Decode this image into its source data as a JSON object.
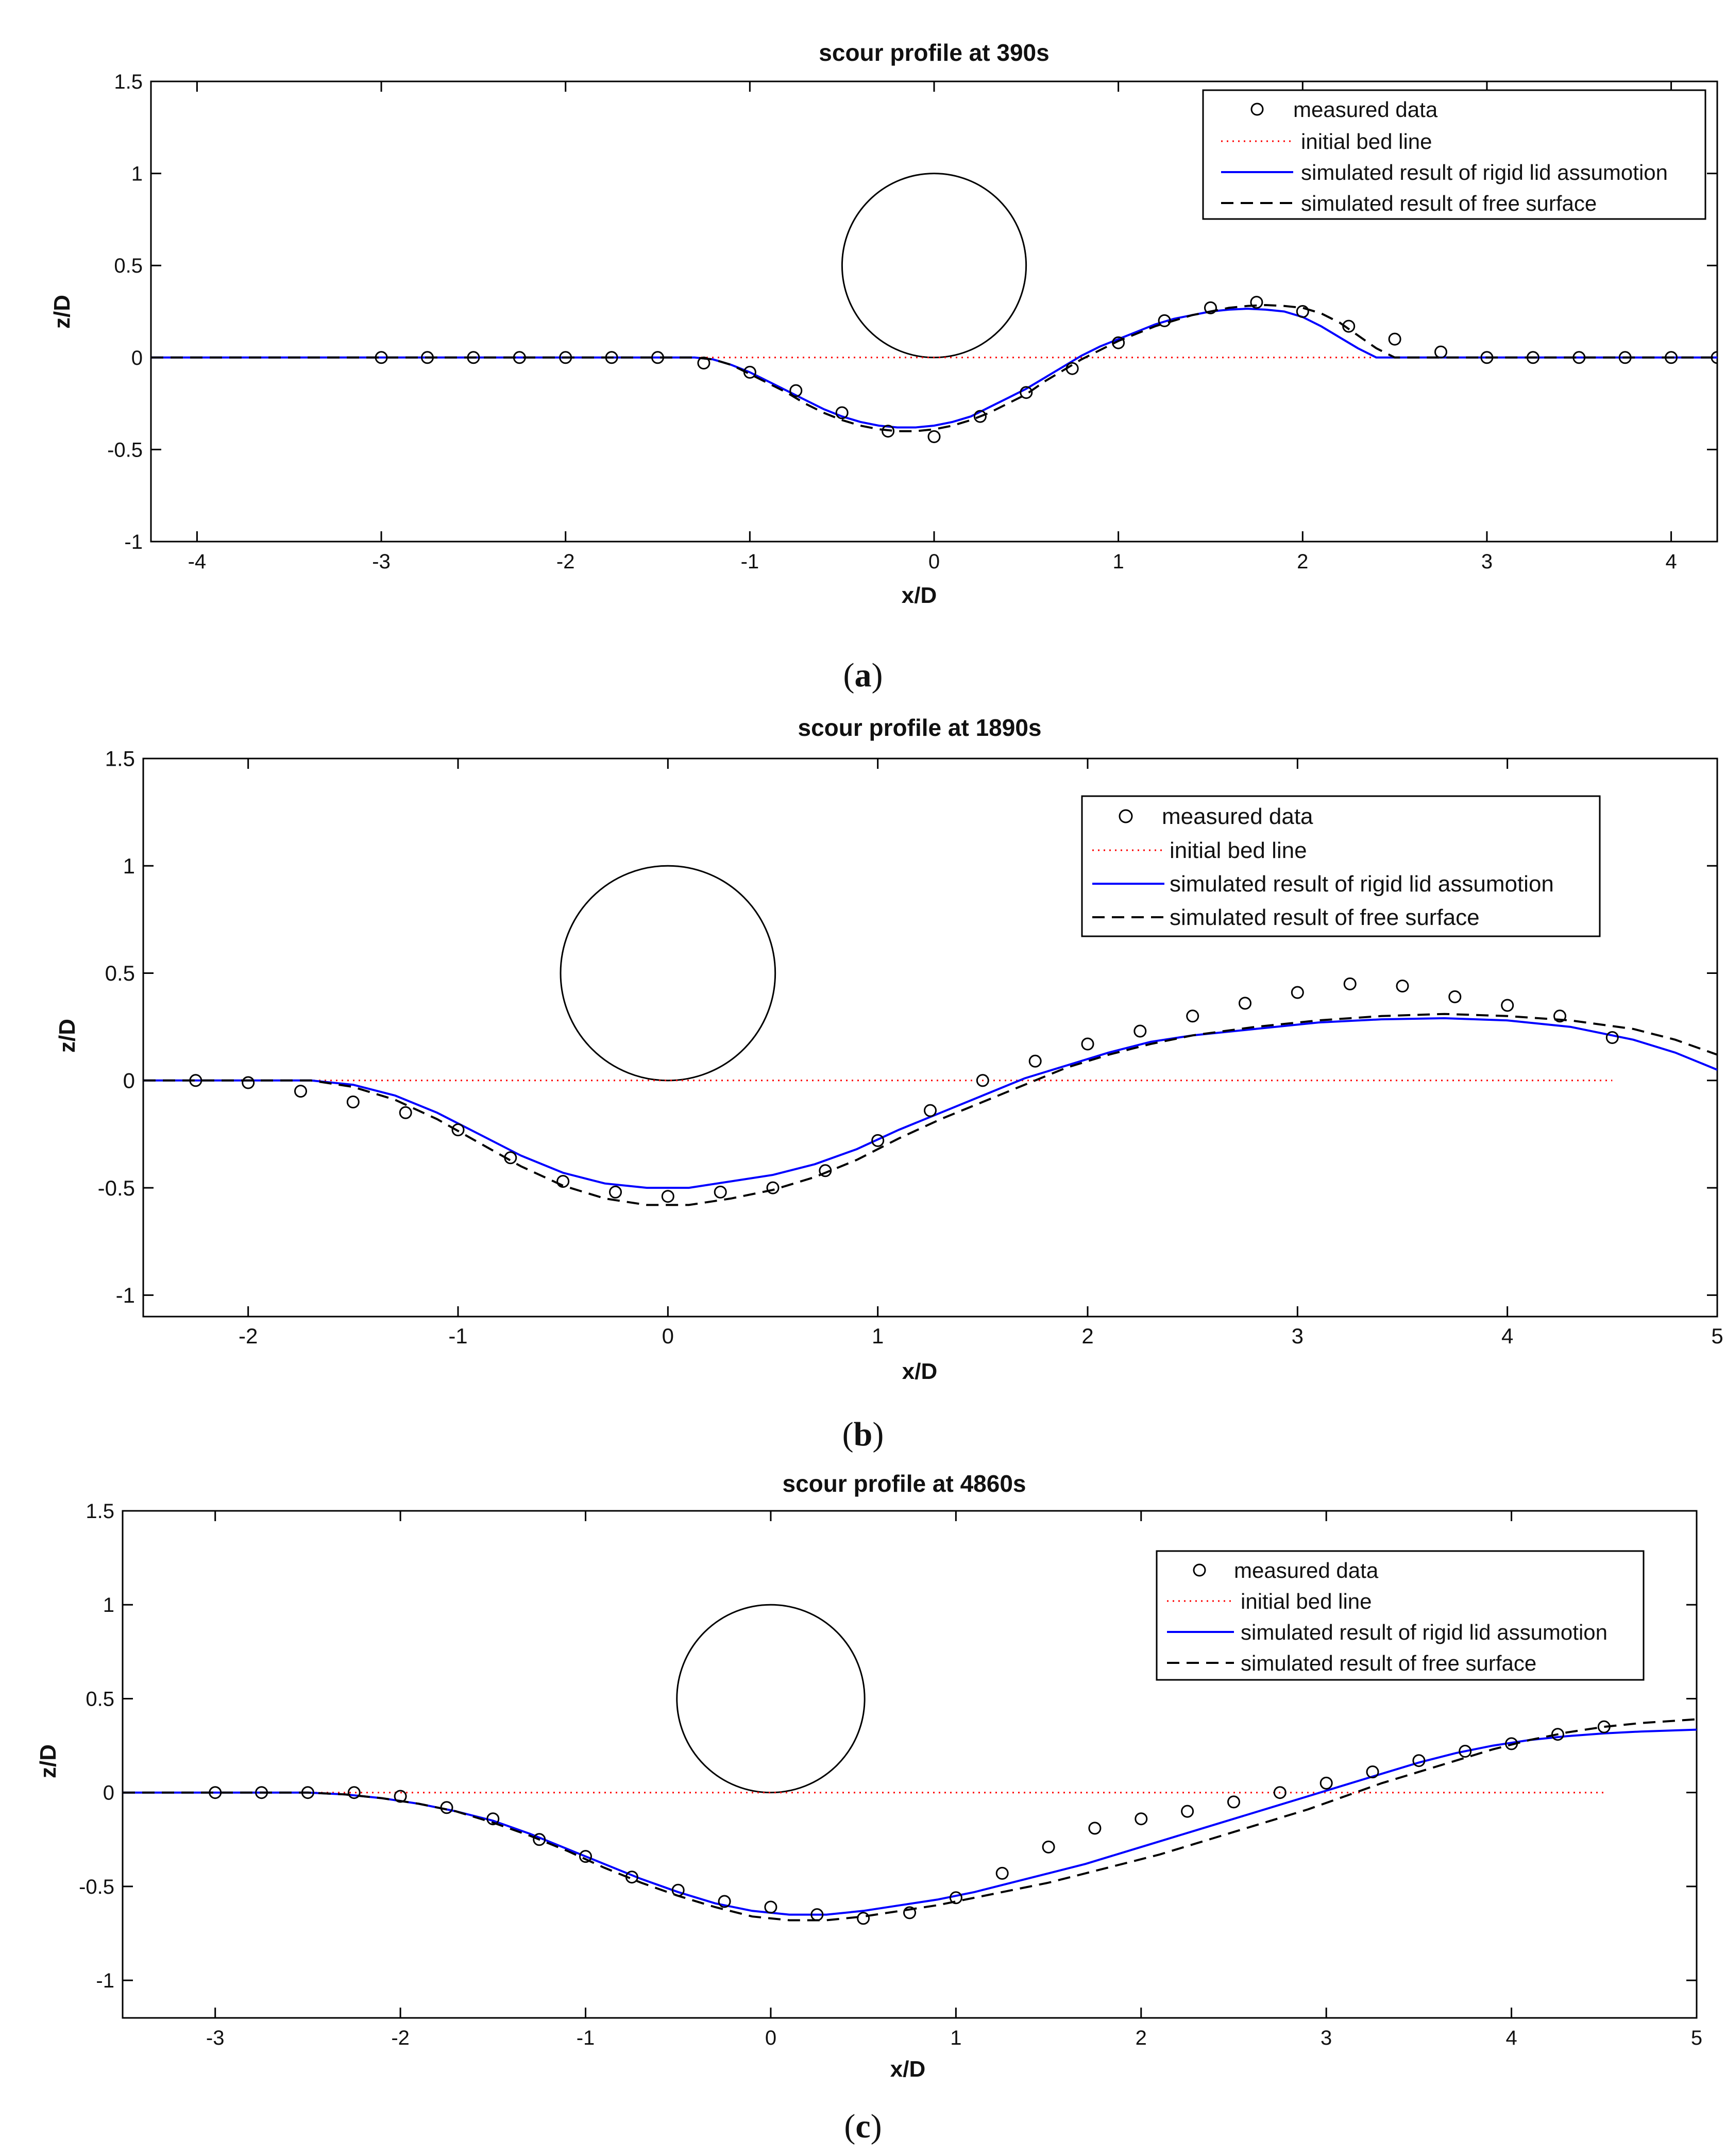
{
  "figure": {
    "panels": [
      {
        "caption_open": "(",
        "caption_letter": "a",
        "caption_close": ")"
      },
      {
        "caption_open": "(",
        "caption_letter": "b",
        "caption_close": ")"
      },
      {
        "caption_open": "(",
        "caption_letter": "c",
        "caption_close": ")"
      }
    ]
  },
  "chart_data": [
    {
      "type": "line",
      "title": "scour profile at 390s",
      "xlabel": "x/D",
      "ylabel": "z/D",
      "xlim": [
        -4.25,
        4.25
      ],
      "ylim": [
        -1,
        1.5
      ],
      "xticks": [
        -4,
        -3,
        -2,
        -1,
        0,
        1,
        2,
        3,
        4
      ],
      "yticks": [
        -1,
        -0.5,
        0,
        0.5,
        1,
        1.5
      ],
      "xtick_labels": [
        "-4",
        "-3",
        "-2",
        "-1",
        "0",
        "1",
        "2",
        "3",
        "4"
      ],
      "ytick_labels": [
        "-1",
        "-0.5",
        "0",
        "0.5",
        "1",
        "1.5"
      ],
      "legend": {
        "placement": "top-right",
        "entries": [
          "measured data",
          "initial bed line",
          "simulated result of rigid lid assumotion",
          "simulated result of free surface"
        ]
      },
      "colors": {
        "measured": "#000000",
        "initial": "#ff0000",
        "rigid": "#0000ff",
        "free": "#000000"
      },
      "pipe": {
        "center_x": 0,
        "center_z": 0.5,
        "radius": 0.5
      },
      "initial_bed": {
        "x": [
          -4.25,
          4.25
        ],
        "z": [
          0,
          0
        ]
      },
      "measured": {
        "x": [
          -3,
          -2.75,
          -2.5,
          -2.25,
          -2,
          -1.75,
          -1.5,
          -1.25,
          -1,
          -0.75,
          -0.5,
          -0.25,
          0,
          0.25,
          0.5,
          0.75,
          1,
          1.25,
          1.5,
          1.75,
          2,
          2.25,
          2.5,
          2.75,
          3,
          3.25,
          3.5,
          3.75,
          4,
          4.25
        ],
        "z": [
          0,
          0,
          0,
          0,
          0,
          0,
          0,
          -0.03,
          -0.08,
          -0.18,
          -0.3,
          -0.4,
          -0.43,
          -0.32,
          -0.19,
          -0.06,
          0.08,
          0.2,
          0.27,
          0.3,
          0.25,
          0.17,
          0.1,
          0.03,
          0,
          0,
          0,
          0,
          0,
          0
        ]
      },
      "series": [
        {
          "name": "simulated result of rigid lid assumotion",
          "x": [
            -4.25,
            -1.3,
            -1.2,
            -1.1,
            -1.0,
            -0.9,
            -0.8,
            -0.7,
            -0.6,
            -0.5,
            -0.4,
            -0.3,
            -0.2,
            -0.1,
            0.0,
            0.1,
            0.2,
            0.3,
            0.4,
            0.5,
            0.6,
            0.7,
            0.8,
            0.9,
            1.0,
            1.1,
            1.2,
            1.3,
            1.4,
            1.5,
            1.6,
            1.7,
            1.8,
            1.9,
            2.0,
            2.1,
            2.2,
            2.3,
            2.4,
            2.5,
            4.25
          ],
          "z": [
            0,
            0,
            -0.01,
            -0.04,
            -0.08,
            -0.13,
            -0.18,
            -0.23,
            -0.28,
            -0.32,
            -0.35,
            -0.37,
            -0.38,
            -0.38,
            -0.37,
            -0.35,
            -0.32,
            -0.27,
            -0.22,
            -0.17,
            -0.11,
            -0.05,
            0.01,
            0.06,
            0.1,
            0.14,
            0.18,
            0.21,
            0.23,
            0.25,
            0.26,
            0.265,
            0.26,
            0.25,
            0.22,
            0.17,
            0.11,
            0.05,
            0,
            0,
            0
          ]
        },
        {
          "name": "simulated result of free surface",
          "x": [
            -4.25,
            -1.3,
            -1.2,
            -1.1,
            -1.0,
            -0.9,
            -0.8,
            -0.7,
            -0.6,
            -0.5,
            -0.4,
            -0.3,
            -0.2,
            -0.1,
            0.0,
            0.1,
            0.2,
            0.3,
            0.4,
            0.5,
            0.6,
            0.7,
            0.8,
            0.9,
            1.0,
            1.1,
            1.2,
            1.3,
            1.4,
            1.5,
            1.6,
            1.7,
            1.8,
            1.9,
            2.0,
            2.1,
            2.2,
            2.3,
            2.4,
            2.5,
            4.25
          ],
          "z": [
            0,
            0,
            -0.01,
            -0.04,
            -0.09,
            -0.14,
            -0.19,
            -0.25,
            -0.3,
            -0.34,
            -0.37,
            -0.39,
            -0.4,
            -0.4,
            -0.39,
            -0.37,
            -0.34,
            -0.3,
            -0.25,
            -0.2,
            -0.13,
            -0.07,
            -0.01,
            0.04,
            0.09,
            0.13,
            0.17,
            0.2,
            0.23,
            0.25,
            0.27,
            0.28,
            0.285,
            0.28,
            0.27,
            0.24,
            0.19,
            0.12,
            0.05,
            0,
            0
          ]
        }
      ]
    },
    {
      "type": "line",
      "title": "scour profile at 1890s",
      "xlabel": "x/D",
      "ylabel": "z/D",
      "xlim": [
        -2.5,
        5
      ],
      "ylim": [
        -1.1,
        1.5
      ],
      "xticks": [
        -2,
        -1,
        0,
        1,
        2,
        3,
        4,
        5
      ],
      "yticks": [
        -1,
        -0.5,
        0,
        0.5,
        1,
        1.5
      ],
      "xtick_labels": [
        "-2",
        "-1",
        "0",
        "1",
        "2",
        "3",
        "4",
        "5"
      ],
      "ytick_labels": [
        "-1",
        "-0.5",
        "0",
        "0.5",
        "1",
        "1.5"
      ],
      "legend": {
        "placement": "top-right",
        "entries": [
          "measured data",
          "initial bed line",
          "simulated result of rigid lid assumotion",
          "simulated result of free surface"
        ]
      },
      "colors": {
        "measured": "#000000",
        "initial": "#ff0000",
        "rigid": "#0000ff",
        "free": "#000000"
      },
      "pipe": {
        "center_x": 0,
        "center_z": 0.5,
        "radius": 0.5
      },
      "initial_bed": {
        "x": [
          -2.5,
          4.5
        ],
        "z": [
          0,
          0
        ]
      },
      "measured": {
        "x": [
          -2.25,
          -2,
          -1.75,
          -1.5,
          -1.25,
          -1,
          -0.75,
          -0.5,
          -0.25,
          0,
          0.25,
          0.5,
          0.75,
          1,
          1.25,
          1.5,
          1.75,
          2,
          2.25,
          2.5,
          2.75,
          3,
          3.25,
          3.5,
          3.75,
          4,
          4.25,
          4.5
        ],
        "z": [
          0,
          -0.01,
          -0.05,
          -0.1,
          -0.15,
          -0.23,
          -0.36,
          -0.47,
          -0.52,
          -0.54,
          -0.52,
          -0.5,
          -0.42,
          -0.28,
          -0.14,
          0,
          0.09,
          0.17,
          0.23,
          0.3,
          0.36,
          0.41,
          0.45,
          0.44,
          0.39,
          0.35,
          0.3,
          0.2
        ]
      },
      "series": [
        {
          "name": "simulated result of rigid lid assumotion",
          "x": [
            -2.5,
            -1.7,
            -1.5,
            -1.3,
            -1.1,
            -0.9,
            -0.7,
            -0.5,
            -0.3,
            -0.1,
            0.1,
            0.3,
            0.5,
            0.7,
            0.9,
            1.1,
            1.3,
            1.5,
            1.7,
            1.9,
            2.1,
            2.3,
            2.5,
            2.8,
            3.1,
            3.4,
            3.7,
            4.0,
            4.3,
            4.6,
            4.8,
            5.0
          ],
          "z": [
            0,
            0,
            -0.02,
            -0.07,
            -0.15,
            -0.25,
            -0.35,
            -0.43,
            -0.48,
            -0.5,
            -0.5,
            -0.47,
            -0.44,
            -0.39,
            -0.32,
            -0.23,
            -0.15,
            -0.07,
            0.01,
            0.07,
            0.13,
            0.18,
            0.21,
            0.24,
            0.27,
            0.285,
            0.29,
            0.28,
            0.25,
            0.19,
            0.13,
            0.05
          ]
        },
        {
          "name": "simulated result of free surface",
          "x": [
            -2.5,
            -1.7,
            -1.5,
            -1.3,
            -1.1,
            -0.9,
            -0.7,
            -0.5,
            -0.3,
            -0.1,
            0.1,
            0.3,
            0.5,
            0.7,
            0.9,
            1.1,
            1.3,
            1.5,
            1.7,
            1.9,
            2.1,
            2.3,
            2.5,
            2.8,
            3.1,
            3.4,
            3.7,
            4.0,
            4.3,
            4.6,
            4.8,
            5.0
          ],
          "z": [
            0,
            0,
            -0.03,
            -0.09,
            -0.18,
            -0.29,
            -0.4,
            -0.49,
            -0.55,
            -0.58,
            -0.58,
            -0.55,
            -0.51,
            -0.45,
            -0.37,
            -0.27,
            -0.18,
            -0.1,
            -0.02,
            0.06,
            0.12,
            0.17,
            0.21,
            0.25,
            0.28,
            0.3,
            0.31,
            0.3,
            0.28,
            0.24,
            0.19,
            0.12
          ]
        }
      ]
    },
    {
      "type": "line",
      "title": "scour profile at 4860s",
      "xlabel": "x/D",
      "ylabel": "z/D",
      "xlim": [
        -3.5,
        5
      ],
      "ylim": [
        -1.2,
        1.5
      ],
      "xticks": [
        -3,
        -2,
        -1,
        0,
        1,
        2,
        3,
        4,
        5
      ],
      "yticks": [
        -1,
        -0.5,
        0,
        0.5,
        1,
        1.5
      ],
      "xtick_labels": [
        "-3",
        "-2",
        "-1",
        "0",
        "1",
        "2",
        "3",
        "4",
        "5"
      ],
      "ytick_labels": [
        "-1",
        "-0.5",
        "0",
        "0.5",
        "1",
        "1.5"
      ],
      "legend": {
        "placement": "top-right",
        "entries": [
          "measured data",
          "initial bed line",
          "simulated result of rigid lid assumotion",
          "simulated result of free surface"
        ]
      },
      "colors": {
        "measured": "#000000",
        "initial": "#ff0000",
        "rigid": "#0000ff",
        "free": "#000000"
      },
      "pipe": {
        "center_x": 0,
        "center_z": 0.5,
        "radius": 0.5
      },
      "initial_bed": {
        "x": [
          -3.5,
          4.5
        ],
        "z": [
          0,
          0
        ]
      },
      "measured": {
        "x": [
          -3,
          -2.75,
          -2.5,
          -2.25,
          -2,
          -1.75,
          -1.5,
          -1.25,
          -1,
          -0.75,
          -0.5,
          -0.25,
          0,
          0.25,
          0.5,
          0.75,
          1,
          1.25,
          1.5,
          1.75,
          2,
          2.25,
          2.5,
          2.75,
          3,
          3.25,
          3.5,
          3.75,
          4,
          4.25,
          4.5
        ],
        "z": [
          0,
          0,
          0,
          0,
          -0.02,
          -0.08,
          -0.14,
          -0.25,
          -0.34,
          -0.45,
          -0.52,
          -0.58,
          -0.61,
          -0.65,
          -0.67,
          -0.64,
          -0.56,
          -0.43,
          -0.29,
          -0.19,
          -0.14,
          -0.1,
          -0.05,
          0,
          0.05,
          0.11,
          0.17,
          0.22,
          0.26,
          0.31,
          0.35
        ]
      },
      "series": [
        {
          "name": "simulated result of rigid lid assumotion",
          "x": [
            -3.5,
            -2.5,
            -2.3,
            -2.1,
            -1.9,
            -1.7,
            -1.5,
            -1.3,
            -1.1,
            -0.9,
            -0.7,
            -0.5,
            -0.3,
            -0.1,
            0.1,
            0.3,
            0.5,
            0.7,
            0.9,
            1.1,
            1.3,
            1.5,
            1.7,
            1.9,
            2.1,
            2.3,
            2.5,
            2.7,
            2.9,
            3.1,
            3.3,
            3.5,
            3.7,
            3.9,
            4.1,
            4.3,
            4.5,
            4.7,
            5.0
          ],
          "z": [
            0,
            0,
            -0.01,
            -0.03,
            -0.06,
            -0.1,
            -0.15,
            -0.22,
            -0.3,
            -0.38,
            -0.46,
            -0.53,
            -0.59,
            -0.63,
            -0.65,
            -0.65,
            -0.63,
            -0.6,
            -0.57,
            -0.53,
            -0.48,
            -0.43,
            -0.38,
            -0.32,
            -0.26,
            -0.2,
            -0.14,
            -0.08,
            -0.02,
            0.04,
            0.1,
            0.16,
            0.21,
            0.25,
            0.28,
            0.3,
            0.315,
            0.325,
            0.335
          ]
        },
        {
          "name": "simulated result of free surface",
          "x": [
            -3.5,
            -2.5,
            -2.3,
            -2.1,
            -1.9,
            -1.7,
            -1.5,
            -1.3,
            -1.1,
            -0.9,
            -0.7,
            -0.5,
            -0.3,
            -0.1,
            0.1,
            0.3,
            0.5,
            0.7,
            0.9,
            1.1,
            1.3,
            1.5,
            1.7,
            1.9,
            2.1,
            2.3,
            2.5,
            2.7,
            2.9,
            3.1,
            3.3,
            3.5,
            3.7,
            3.9,
            4.1,
            4.3,
            4.5,
            4.7,
            5.0
          ],
          "z": [
            0,
            0,
            -0.01,
            -0.03,
            -0.06,
            -0.1,
            -0.16,
            -0.23,
            -0.31,
            -0.4,
            -0.48,
            -0.55,
            -0.61,
            -0.66,
            -0.68,
            -0.68,
            -0.66,
            -0.63,
            -0.6,
            -0.56,
            -0.52,
            -0.48,
            -0.43,
            -0.38,
            -0.33,
            -0.27,
            -0.21,
            -0.15,
            -0.09,
            -0.02,
            0.05,
            0.11,
            0.17,
            0.23,
            0.28,
            0.32,
            0.35,
            0.37,
            0.39
          ]
        }
      ]
    }
  ]
}
